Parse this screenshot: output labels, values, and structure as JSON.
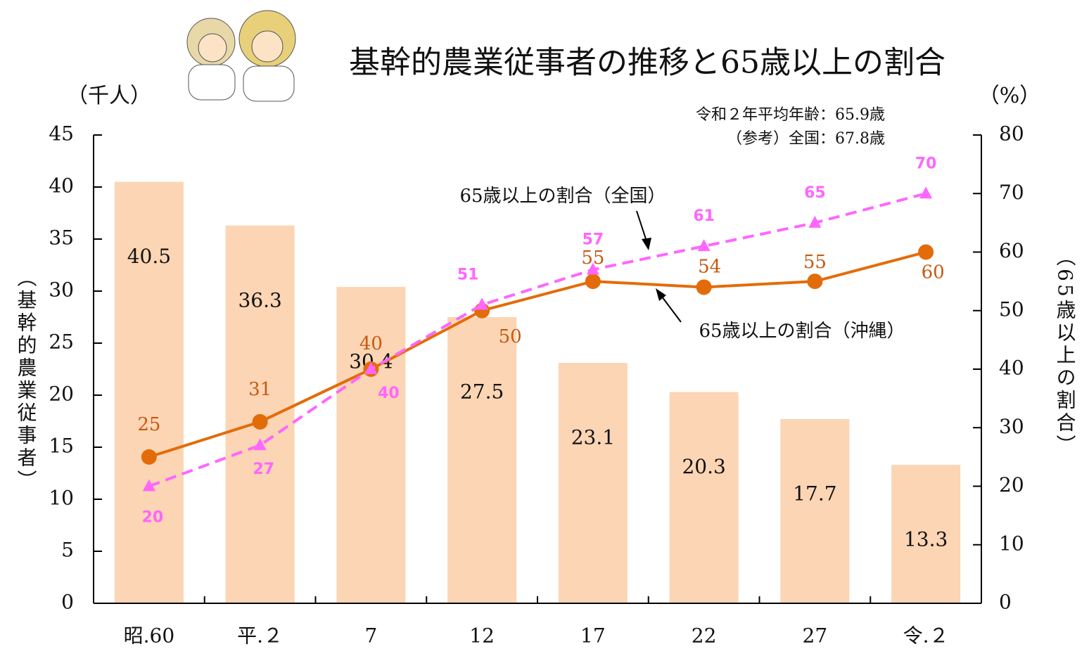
{
  "chart_data": {
    "type": "bar",
    "title": "基幹的農業従事者の推移と65歳以上の割合",
    "y_unit": "（千人）",
    "y2_unit": "（%）",
    "ylabel": "（基幹的農業従事者）",
    "y2label": "（65歳以上の割合）",
    "notes": [
      "令和２年平均年齢：65.9歳",
      "（参考）全国：67.8歳"
    ],
    "categories": [
      "昭.60",
      "平.２",
      "7",
      "12",
      "17",
      "22",
      "27",
      "令.２"
    ],
    "values": [
      40.5,
      36.3,
      30.4,
      27.5,
      23.1,
      20.3,
      17.7,
      13.3
    ],
    "color": "#fcd5b4",
    "series": [
      {
        "name": "65歳以上の割合（沖縄）",
        "color": "#e36c0a",
        "axis": "y2",
        "values": [
          25,
          31,
          40,
          50,
          55,
          54,
          55,
          60
        ]
      },
      {
        "name": "65歳以上の割合（全国）",
        "color": "#ff66ff",
        "axis": "y2",
        "values": [
          20,
          27,
          40,
          51,
          57,
          61,
          65,
          70
        ]
      }
    ],
    "ylim": [
      0,
      45
    ],
    "yticks": [
      0,
      5,
      10,
      15,
      20,
      25,
      30,
      35,
      40,
      45
    ],
    "y2lim": [
      0,
      80
    ],
    "y2ticks": [
      0,
      10,
      20,
      30,
      40,
      50,
      60,
      70,
      80
    ]
  }
}
